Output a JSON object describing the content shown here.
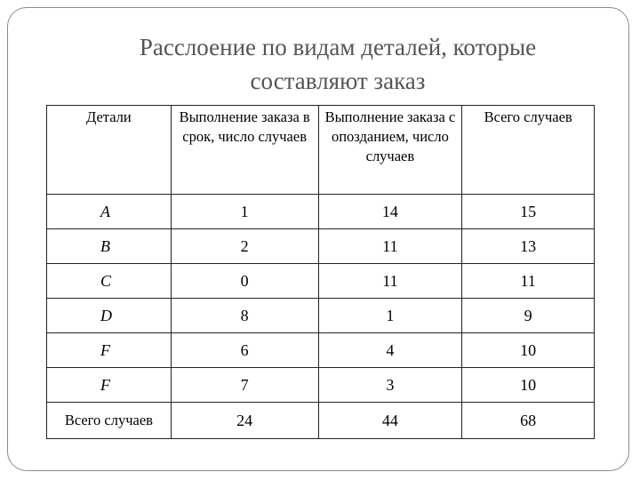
{
  "title": {
    "line1": "Расслоение по видам деталей, которые",
    "line2": "составляют заказ"
  },
  "table": {
    "headers": [
      "Детали",
      "Выполнение заказа в срок, число случаев",
      "Выполнение заказа с опозданием, число случаев",
      "Всего случаев"
    ],
    "rows": [
      {
        "detail": "A",
        "on_time": "1",
        "late": "14",
        "total": "15"
      },
      {
        "detail": "B",
        "on_time": "2",
        "late": "11",
        "total": "13"
      },
      {
        "detail": "C",
        "on_time": "0",
        "late": "11",
        "total": "11"
      },
      {
        "detail": "D",
        "on_time": "8",
        "late": "1",
        "total": "9"
      },
      {
        "detail": "F",
        "on_time": "6",
        "late": "4",
        "total": "10"
      },
      {
        "detail": "F",
        "on_time": "7",
        "late": "3",
        "total": "10"
      }
    ],
    "totals": {
      "label": "Всего случаев",
      "on_time": "24",
      "late": "44",
      "total": "68"
    }
  }
}
